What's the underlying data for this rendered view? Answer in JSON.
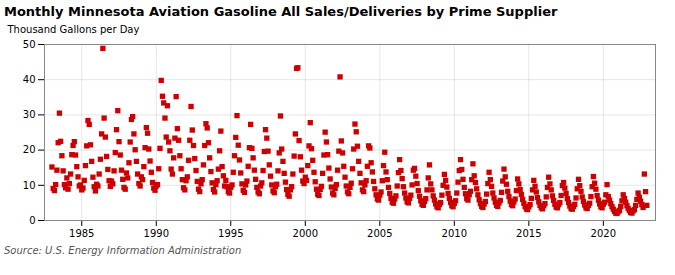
{
  "chart_data": {
    "type": "scatter",
    "title": "Monthly Minnesota Aviation Gasoline All Sales/Deliveries by Prime Supplier",
    "ylabel": "Thousand Gallons per Day",
    "caption": "Source: U.S. Energy Information Administration",
    "color": "#cc0000",
    "marker": "square",
    "grid": true,
    "xlim": [
      1982.5,
      2023.5
    ],
    "ylim": [
      0,
      50
    ],
    "xticks": [
      1985,
      1990,
      1995,
      2000,
      2005,
      2010,
      2015,
      2020
    ],
    "yticks": [
      0,
      10,
      20,
      30,
      40,
      50
    ],
    "x": [
      1983.0,
      1983.083,
      1983.167,
      1983.25,
      1983.333,
      1983.417,
      1983.5,
      1983.583,
      1983.667,
      1983.75,
      1983.833,
      1983.917,
      1984.0,
      1984.083,
      1984.167,
      1984.25,
      1984.333,
      1984.417,
      1984.5,
      1984.583,
      1984.667,
      1984.75,
      1984.833,
      1984.917,
      1985.0,
      1985.083,
      1985.167,
      1985.25,
      1985.333,
      1985.417,
      1985.5,
      1985.583,
      1985.667,
      1985.75,
      1985.833,
      1985.917,
      1986.0,
      1986.083,
      1986.167,
      1986.25,
      1986.333,
      1986.417,
      1986.5,
      1986.583,
      1986.667,
      1986.75,
      1986.833,
      1986.917,
      1987.0,
      1987.083,
      1987.167,
      1987.25,
      1987.333,
      1987.417,
      1987.5,
      1987.583,
      1987.667,
      1987.75,
      1987.833,
      1987.917,
      1988.0,
      1988.083,
      1988.167,
      1988.25,
      1988.333,
      1988.417,
      1988.5,
      1988.583,
      1988.667,
      1988.75,
      1988.833,
      1988.917,
      1989.0,
      1989.083,
      1989.167,
      1989.25,
      1989.333,
      1989.417,
      1989.5,
      1989.583,
      1989.667,
      1989.75,
      1989.833,
      1989.917,
      1990.0,
      1990.083,
      1990.167,
      1990.25,
      1990.333,
      1990.417,
      1990.5,
      1990.583,
      1990.667,
      1990.75,
      1990.833,
      1990.917,
      1991.0,
      1991.083,
      1991.167,
      1991.25,
      1991.333,
      1991.417,
      1991.5,
      1991.583,
      1991.667,
      1991.75,
      1991.833,
      1991.917,
      1992.0,
      1992.083,
      1992.167,
      1992.25,
      1992.333,
      1992.417,
      1992.5,
      1992.583,
      1992.667,
      1992.75,
      1992.833,
      1992.917,
      1993.0,
      1993.083,
      1993.167,
      1993.25,
      1993.333,
      1993.417,
      1993.5,
      1993.583,
      1993.667,
      1993.75,
      1993.833,
      1993.917,
      1994.0,
      1994.083,
      1994.167,
      1994.25,
      1994.333,
      1994.417,
      1994.5,
      1994.583,
      1994.667,
      1994.75,
      1994.833,
      1994.917,
      1995.0,
      1995.083,
      1995.167,
      1995.25,
      1995.333,
      1995.417,
      1995.5,
      1995.583,
      1995.667,
      1995.75,
      1995.833,
      1995.917,
      1996.0,
      1996.083,
      1996.167,
      1996.25,
      1996.333,
      1996.417,
      1996.5,
      1996.583,
      1996.667,
      1996.75,
      1996.833,
      1996.917,
      1997.0,
      1997.083,
      1997.167,
      1997.25,
      1997.333,
      1997.417,
      1997.5,
      1997.583,
      1997.667,
      1997.75,
      1997.833,
      1997.917,
      1998.0,
      1998.083,
      1998.167,
      1998.25,
      1998.333,
      1998.417,
      1998.5,
      1998.583,
      1998.667,
      1998.75,
      1998.833,
      1998.917,
      1999.0,
      1999.083,
      1999.167,
      1999.25,
      1999.333,
      1999.417,
      1999.5,
      1999.583,
      1999.667,
      1999.75,
      1999.833,
      1999.917,
      2000.0,
      2000.083,
      2000.167,
      2000.25,
      2000.333,
      2000.417,
      2000.5,
      2000.583,
      2000.667,
      2000.75,
      2000.833,
      2000.917,
      2001.0,
      2001.083,
      2001.167,
      2001.25,
      2001.333,
      2001.417,
      2001.5,
      2001.583,
      2001.667,
      2001.75,
      2001.833,
      2001.917,
      2002.0,
      2002.083,
      2002.167,
      2002.25,
      2002.333,
      2002.417,
      2002.5,
      2002.583,
      2002.667,
      2002.75,
      2002.833,
      2002.917,
      2003.0,
      2003.083,
      2003.167,
      2003.25,
      2003.333,
      2003.417,
      2003.5,
      2003.583,
      2003.667,
      2003.75,
      2003.833,
      2003.917,
      2004.0,
      2004.083,
      2004.167,
      2004.25,
      2004.333,
      2004.417,
      2004.5,
      2004.583,
      2004.667,
      2004.75,
      2004.833,
      2004.917,
      2005.0,
      2005.083,
      2005.167,
      2005.25,
      2005.333,
      2005.417,
      2005.5,
      2005.583,
      2005.667,
      2005.75,
      2005.833,
      2005.917,
      2006.0,
      2006.083,
      2006.167,
      2006.25,
      2006.333,
      2006.417,
      2006.5,
      2006.583,
      2006.667,
      2006.75,
      2006.833,
      2006.917,
      2007.0,
      2007.083,
      2007.167,
      2007.25,
      2007.333,
      2007.417,
      2007.5,
      2007.583,
      2007.667,
      2007.75,
      2007.833,
      2007.917,
      2008.0,
      2008.083,
      2008.167,
      2008.25,
      2008.333,
      2008.417,
      2008.5,
      2008.583,
      2008.667,
      2008.75,
      2008.833,
      2008.917,
      2009.0,
      2009.083,
      2009.167,
      2009.25,
      2009.333,
      2009.417,
      2009.5,
      2009.583,
      2009.667,
      2009.75,
      2009.833,
      2009.917,
      2010.0,
      2010.083,
      2010.167,
      2010.25,
      2010.333,
      2010.417,
      2010.5,
      2010.583,
      2010.667,
      2010.75,
      2010.833,
      2010.917,
      2011.0,
      2011.083,
      2011.167,
      2011.25,
      2011.333,
      2011.417,
      2011.5,
      2011.583,
      2011.667,
      2011.75,
      2011.833,
      2011.917,
      2012.0,
      2012.083,
      2012.167,
      2012.25,
      2012.333,
      2012.417,
      2012.5,
      2012.583,
      2012.667,
      2012.75,
      2012.833,
      2012.917,
      2013.0,
      2013.083,
      2013.167,
      2013.25,
      2013.333,
      2013.417,
      2013.5,
      2013.583,
      2013.667,
      2013.75,
      2013.833,
      2013.917,
      2014.0,
      2014.083,
      2014.167,
      2014.25,
      2014.333,
      2014.417,
      2014.5,
      2014.583,
      2014.667,
      2014.75,
      2014.833,
      2014.917,
      2015.0,
      2015.083,
      2015.167,
      2015.25,
      2015.333,
      2015.417,
      2015.5,
      2015.583,
      2015.667,
      2015.75,
      2015.833,
      2015.917,
      2016.0,
      2016.083,
      2016.167,
      2016.25,
      2016.333,
      2016.417,
      2016.5,
      2016.583,
      2016.667,
      2016.75,
      2016.833,
      2016.917,
      2017.0,
      2017.083,
      2017.167,
      2017.25,
      2017.333,
      2017.417,
      2017.5,
      2017.583,
      2017.667,
      2017.75,
      2017.833,
      2017.917,
      2018.0,
      2018.083,
      2018.167,
      2018.25,
      2018.333,
      2018.417,
      2018.5,
      2018.583,
      2018.667,
      2018.75,
      2018.833,
      2018.917,
      2019.0,
      2019.083,
      2019.167,
      2019.25,
      2019.333,
      2019.417,
      2019.5,
      2019.583,
      2019.667,
      2019.75,
      2019.833,
      2019.917,
      2020.0,
      2020.083,
      2020.167,
      2020.25,
      2020.333,
      2020.417,
      2020.5,
      2020.583,
      2020.667,
      2020.75,
      2020.833,
      2020.917,
      2021.0,
      2021.083,
      2021.167,
      2021.25,
      2021.333,
      2021.417,
      2021.5,
      2021.583,
      2021.667,
      2021.75,
      2021.833,
      2021.917,
      2022.0,
      2022.083,
      2022.167,
      2022.25,
      2022.333,
      2022.417,
      2022.5,
      2022.583,
      2022.667,
      2022.75,
      2022.833,
      2022.917
    ],
    "values": [
      15.2,
      9.1,
      8.5,
      10.2,
      14.3,
      22.1,
      30.5,
      22.5,
      18.4,
      14.1,
      10.2,
      9.3,
      12.1,
      8.9,
      10.5,
      13.2,
      18.7,
      21.3,
      22.4,
      18.6,
      15.3,
      12.4,
      9.8,
      10.1,
      8.7,
      9.2,
      11.4,
      15.6,
      21.2,
      28.4,
      27.3,
      21.5,
      16.8,
      12.3,
      9.6,
      8.4,
      10.3,
      9.8,
      13.2,
      17.4,
      24.6,
      48.9,
      29.1,
      23.7,
      18.2,
      14.5,
      11.3,
      9.7,
      11.2,
      10.4,
      14.1,
      19.3,
      25.8,
      31.2,
      22.4,
      18.6,
      14.3,
      11.7,
      9.4,
      8.9,
      13.5,
      12.1,
      16.4,
      22.3,
      28.7,
      29.5,
      24.6,
      20.1,
      16.8,
      13.2,
      10.5,
      9.8,
      12.4,
      11.6,
      15.3,
      20.7,
      26.4,
      24.8,
      20.3,
      16.9,
      13.7,
      10.8,
      9.2,
      8.6,
      9.8,
      10.2,
      14.7,
      20.5,
      39.8,
      35.3,
      33.4,
      29.1,
      23.7,
      32.6,
      22.3,
      19.8,
      14.6,
      13.2,
      17.8,
      23.4,
      35.2,
      26.1,
      22.8,
      18.4,
      14.7,
      11.6,
      9.3,
      8.7,
      11.3,
      12.4,
      17.1,
      22.8,
      32.4,
      25.7,
      21.3,
      17.6,
      14.2,
      11.1,
      8.9,
      8.2,
      10.4,
      11.6,
      15.8,
      21.3,
      27.5,
      26.3,
      22.1,
      17.8,
      13.9,
      10.7,
      8.8,
      8.1,
      10.2,
      11.3,
      14.6,
      19.8,
      25.4,
      15.3,
      12.7,
      9.8,
      11.4,
      9.6,
      8.2,
      7.8,
      9.4,
      10.1,
      13.7,
      18.4,
      23.6,
      29.8,
      21.4,
      17.2,
      13.5,
      10.4,
      8.6,
      8.0,
      10.1,
      11.2,
      15.4,
      20.7,
      27.3,
      20.5,
      17.8,
      14.3,
      11.7,
      9.4,
      8.1,
      7.6,
      9.8,
      10.7,
      14.2,
      19.6,
      25.8,
      23.4,
      19.7,
      15.8,
      12.6,
      10.1,
      8.4,
      7.9,
      9.6,
      10.3,
      14.1,
      19.2,
      29.7,
      20.3,
      16.8,
      13.4,
      10.9,
      8.8,
      7.4,
      6.9,
      8.7,
      9.6,
      13.2,
      18.3,
      24.6,
      43.2,
      43.4,
      22.7,
      18.1,
      14.3,
      11.2,
      10.5,
      12.3,
      11.4,
      15.6,
      21.2,
      27.8,
      20.4,
      17.1,
      13.7,
      11.0,
      8.9,
      7.5,
      7.1,
      8.8,
      9.7,
      13.4,
      18.6,
      25.1,
      22.3,
      18.7,
      14.9,
      11.8,
      9.5,
      7.8,
      7.3,
      9.1,
      10.2,
      14.3,
      19.7,
      40.8,
      22.6,
      19.2,
      15.4,
      12.3,
      9.8,
      8.1,
      7.6,
      9.4,
      10.6,
      14.7,
      20.3,
      27.4,
      25.2,
      21.1,
      16.8,
      13.4,
      10.7,
      8.7,
      8.2,
      10.1,
      11.3,
      15.4,
      21.2,
      20.6,
      16.4,
      13.8,
      11.1,
      9.0,
      7.3,
      6.1,
      5.8,
      7.2,
      8.1,
      11.3,
      15.6,
      19.4,
      13.8,
      11.6,
      9.4,
      7.7,
      6.3,
      5.2,
      4.9,
      6.1,
      7.0,
      9.8,
      13.6,
      17.3,
      14.2,
      11.9,
      9.6,
      7.8,
      6.4,
      5.3,
      5.0,
      6.3,
      7.2,
      10.1,
      14.3,
      14.8,
      12.6,
      10.5,
      8.5,
      6.9,
      5.6,
      4.6,
      4.3,
      5.4,
      6.2,
      8.7,
      12.1,
      15.8,
      10.4,
      8.7,
      7.0,
      5.8,
      4.7,
      3.9,
      3.6,
      4.5,
      5.1,
      7.2,
      10.0,
      13.1,
      11.4,
      9.5,
      7.7,
      6.3,
      5.1,
      4.2,
      3.9,
      4.9,
      5.6,
      7.8,
      10.9,
      14.2,
      17.3,
      14.5,
      11.7,
      9.4,
      7.6,
      6.2,
      5.8,
      7.3,
      8.3,
      11.6,
      16.1,
      12.7,
      10.8,
      9.0,
      7.3,
      5.9,
      4.8,
      4.0,
      3.7,
      4.7,
      5.4,
      7.5,
      10.5,
      13.7,
      11.6,
      9.7,
      7.8,
      6.4,
      5.2,
      4.3,
      4.0,
      5.0,
      5.7,
      8.0,
      11.2,
      14.6,
      12.4,
      10.3,
      8.3,
      6.8,
      5.5,
      4.5,
      4.2,
      5.3,
      6.1,
      8.5,
      11.8,
      10.4,
      8.8,
      7.4,
      6.0,
      4.9,
      4.0,
      3.3,
      3.1,
      3.9,
      4.5,
      6.3,
      8.7,
      11.4,
      9.7,
      8.1,
      6.5,
      5.3,
      4.3,
      3.6,
      3.3,
      4.2,
      4.8,
      6.7,
      9.4,
      12.3,
      10.4,
      8.7,
      7.0,
      5.7,
      4.6,
      3.8,
      3.6,
      4.5,
      5.1,
      7.1,
      9.9,
      10.8,
      9.2,
      7.7,
      6.2,
      5.1,
      4.1,
      3.4,
      3.2,
      4.0,
      4.6,
      6.4,
      9.0,
      11.7,
      9.9,
      8.3,
      6.7,
      5.4,
      4.4,
      3.6,
      3.4,
      4.3,
      4.9,
      6.8,
      9.6,
      12.5,
      10.6,
      8.9,
      7.1,
      5.8,
      4.7,
      3.9,
      3.6,
      4.6,
      5.2,
      7.3,
      10.2,
      6.8,
      5.8,
      4.8,
      3.9,
      3.2,
      2.6,
      2.1,
      2.0,
      2.5,
      2.9,
      4.0,
      5.6,
      7.3,
      6.2,
      5.2,
      4.2,
      3.4,
      2.8,
      2.3,
      2.1,
      2.7,
      3.1,
      4.3,
      6.0,
      7.8,
      6.6,
      5.5,
      4.5,
      3.7,
      13.2,
      8.2,
      4.3
    ]
  }
}
